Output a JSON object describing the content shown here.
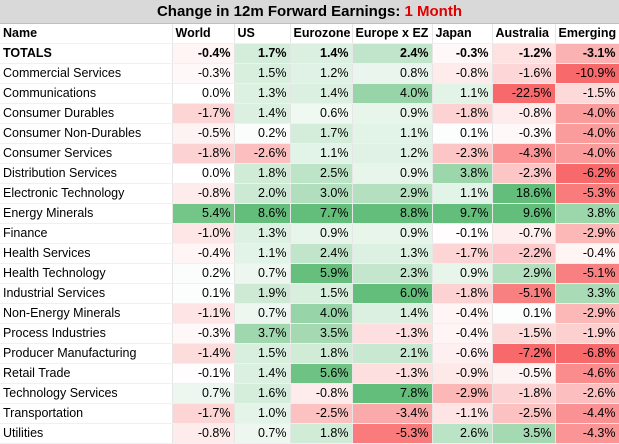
{
  "title": {
    "prefix": "Change in 12m Forward Earnings: ",
    "highlight": "1 Month"
  },
  "columns": [
    "Name",
    "World",
    "US",
    "Eurozone",
    "Europe x EZ",
    "Japan",
    "Australia",
    "Emerging"
  ],
  "rows": [
    {
      "name": "TOTALS",
      "values": [
        "-0.4%",
        "1.7%",
        "1.4%",
        "2.4%",
        "-0.3%",
        "-1.2%",
        "-3.1%"
      ]
    },
    {
      "name": "Commercial Services",
      "values": [
        "-0.3%",
        "1.5%",
        "1.2%",
        "0.8%",
        "-0.8%",
        "-1.6%",
        "-10.9%"
      ]
    },
    {
      "name": "Communications",
      "values": [
        "0.0%",
        "1.3%",
        "1.4%",
        "4.0%",
        "1.1%",
        "-22.5%",
        "-1.5%"
      ]
    },
    {
      "name": "Consumer Durables",
      "values": [
        "-1.7%",
        "1.4%",
        "0.6%",
        "0.9%",
        "-1.8%",
        "-0.8%",
        "-4.0%"
      ]
    },
    {
      "name": "Consumer Non-Durables",
      "values": [
        "-0.5%",
        "0.2%",
        "1.7%",
        "1.1%",
        "0.1%",
        "-0.3%",
        "-4.0%"
      ]
    },
    {
      "name": "Consumer Services",
      "values": [
        "-1.8%",
        "-2.6%",
        "1.1%",
        "1.2%",
        "-2.3%",
        "-4.3%",
        "-4.0%"
      ]
    },
    {
      "name": "Distribution Services",
      "values": [
        "0.0%",
        "1.8%",
        "2.5%",
        "0.9%",
        "3.8%",
        "-2.3%",
        "-6.2%"
      ]
    },
    {
      "name": "Electronic Technology",
      "values": [
        "-0.8%",
        "2.0%",
        "3.0%",
        "2.9%",
        "1.1%",
        "18.6%",
        "-5.3%"
      ]
    },
    {
      "name": "Energy Minerals",
      "values": [
        "5.4%",
        "8.6%",
        "7.7%",
        "8.8%",
        "9.7%",
        "9.6%",
        "3.8%"
      ]
    },
    {
      "name": "Finance",
      "values": [
        "-1.0%",
        "1.3%",
        "0.9%",
        "0.9%",
        "-0.1%",
        "-0.7%",
        "-2.9%"
      ]
    },
    {
      "name": "Health Services",
      "values": [
        "-0.4%",
        "1.1%",
        "2.4%",
        "1.3%",
        "-1.7%",
        "-2.2%",
        "-0.4%"
      ]
    },
    {
      "name": "Health Technology",
      "values": [
        "0.2%",
        "0.7%",
        "5.9%",
        "2.3%",
        "0.9%",
        "2.9%",
        "-5.1%"
      ]
    },
    {
      "name": "Industrial Services",
      "values": [
        "0.1%",
        "1.9%",
        "1.5%",
        "6.0%",
        "-1.8%",
        "-5.1%",
        "3.3%"
      ]
    },
    {
      "name": "Non-Energy Minerals",
      "values": [
        "-1.1%",
        "0.7%",
        "4.0%",
        "1.4%",
        "-0.4%",
        "0.1%",
        "-2.9%"
      ]
    },
    {
      "name": "Process Industries",
      "values": [
        "-0.3%",
        "3.7%",
        "3.5%",
        "-1.3%",
        "-0.4%",
        "-1.5%",
        "-1.9%"
      ]
    },
    {
      "name": "Producer Manufacturing",
      "values": [
        "-1.4%",
        "1.5%",
        "1.8%",
        "2.1%",
        "-0.6%",
        "-7.2%",
        "-6.8%"
      ]
    },
    {
      "name": "Retail Trade",
      "values": [
        "-0.1%",
        "1.4%",
        "5.6%",
        "-1.3%",
        "-0.9%",
        "-0.5%",
        "-4.6%"
      ]
    },
    {
      "name": "Technology Services",
      "values": [
        "0.7%",
        "1.6%",
        "-0.8%",
        "7.8%",
        "-2.9%",
        "-1.8%",
        "-2.6%"
      ]
    },
    {
      "name": "Transportation",
      "values": [
        "-1.7%",
        "1.0%",
        "-2.5%",
        "-3.4%",
        "-1.1%",
        "-2.5%",
        "-4.4%"
      ]
    },
    {
      "name": "Utilities",
      "values": [
        "-0.8%",
        "0.7%",
        "1.8%",
        "-5.3%",
        "2.6%",
        "3.5%",
        "-4.3%"
      ]
    }
  ]
}
